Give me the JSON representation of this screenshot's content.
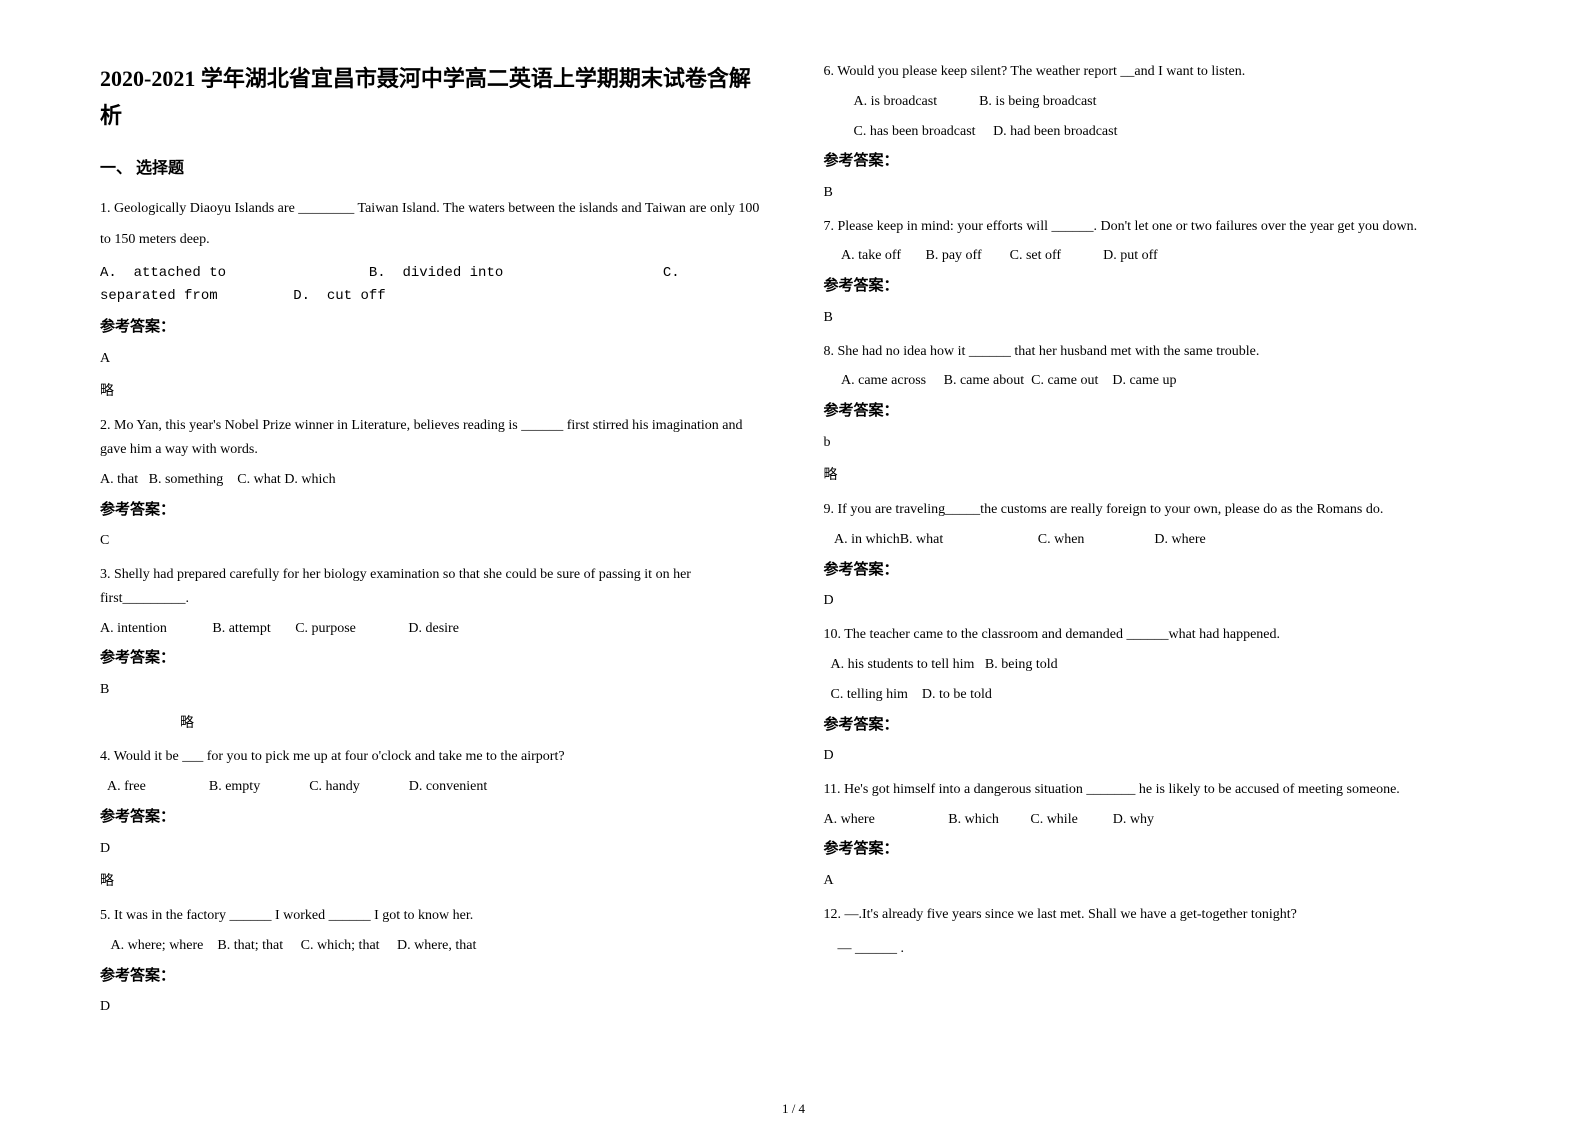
{
  "title": "2020-2021 学年湖北省宜昌市聂河中学高二英语上学期期末试卷含解析",
  "section": "一、 选择题",
  "answer_label": "参考答案：",
  "lue": "略",
  "page_number": "1 / 4",
  "questions": [
    {
      "text": "1. Geologically Diaoyu Islands are ________ Taiwan Island. The waters between the islands and Taiwan are only 100 to 150 meters deep.",
      "opts": "A.  attached to                 B.  divided into                   C. separated from         D.  cut off",
      "ans": "A",
      "has_lue": true,
      "lue_indent": false,
      "spaced": true,
      "mono_opts": true
    },
    {
      "text": "2. Mo Yan, this year's Nobel Prize winner in Literature, believes reading is ______ first stirred his imagination and gave him a way with words.",
      "opts": "A. that   B. something    C. what D. which",
      "ans": "C",
      "has_lue": false
    },
    {
      "text": "3. Shelly had prepared carefully for her biology examination so that she could be sure of passing it on her first_________.",
      "opts": "A. intention             B. attempt       C. purpose               D. desire",
      "ans": "B",
      "has_lue": true,
      "lue_indent": true
    },
    {
      "text": "4. Would it be ___ for you to pick me up at four o'clock and take me to the airport?",
      "opts": "  A. free                  B. empty              C. handy              D. convenient",
      "ans": "D",
      "has_lue": true,
      "lue_indent": false
    },
    {
      "text": "5. It was in the factory ______ I worked ______ I got to know her.",
      "opts": "   A. where; where    B. that; that     C. which; that     D. where, that",
      "ans": "D",
      "has_lue": false
    },
    {
      "text": "6. Would you please keep silent? The weather report __and I want to listen.",
      "opts_lines": [
        "A. is broadcast            B. is being broadcast",
        "C. has been broadcast     D. had been broadcast"
      ],
      "ans": "B",
      "has_lue": false,
      "indent_opts": true
    },
    {
      "text": "7. Please keep in mind: your efforts will ______. Don't let one or two failures over the year get you down.",
      "opts": "     A. take off       B. pay off        C. set off            D. put off",
      "ans": "B",
      "has_lue": false
    },
    {
      "text": "8. She had no idea how it ______ that her husband met with the same trouble.",
      "opts": "     A. came across     B. came about  C. came out    D. came up",
      "ans": "b",
      "has_lue": true,
      "lue_indent": false
    },
    {
      "text": "9. If you are traveling_____the customs are really foreign to your own, please do as the Romans do.",
      "opts": "   A. in whichB. what                           C. when                    D. where",
      "ans": "D",
      "has_lue": false
    },
    {
      "text": "10. The teacher came to the classroom and demanded ______what had happened.",
      "opts_lines": [
        "  A. his students to tell him   B. being told",
        "  C. telling him    D. to be told"
      ],
      "ans": "D",
      "has_lue": false
    },
    {
      "text": "11. He's got himself into a dangerous situation _______ he is likely to be accused of meeting someone.",
      "opts": "A. where                     B. which         C. while          D. why",
      "ans": "A",
      "has_lue": false
    },
    {
      "text": " 12.  —.It's already five years since we last met. Shall we have a get-together tonight?",
      "extra": "    — ______ .",
      "no_answer": true
    }
  ]
}
